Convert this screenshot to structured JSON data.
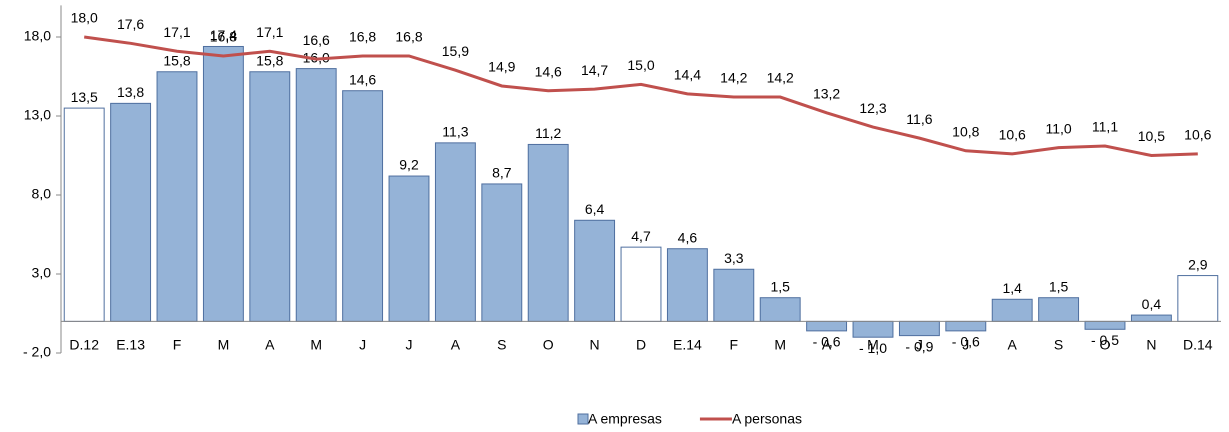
{
  "chart_data": {
    "type": "bar-line",
    "categories": [
      "D.12",
      "E.13",
      "F",
      "M",
      "A",
      "M",
      "J",
      "J",
      "A",
      "S",
      "O",
      "N",
      "D",
      "E.14",
      "F",
      "M",
      "A",
      "M",
      "J",
      "J",
      "A",
      "S",
      "O",
      "N",
      "D.14"
    ],
    "series": [
      {
        "name": "A empresas",
        "type": "bar",
        "color": "#95b3d7",
        "point_colors": [
          "#ffffff",
          "#95b3d7",
          "#95b3d7",
          "#95b3d7",
          "#95b3d7",
          "#95b3d7",
          "#95b3d7",
          "#95b3d7",
          "#95b3d7",
          "#95b3d7",
          "#95b3d7",
          "#95b3d7",
          "#ffffff",
          "#95b3d7",
          "#95b3d7",
          "#95b3d7",
          "#95b3d7",
          "#95b3d7",
          "#95b3d7",
          "#95b3d7",
          "#95b3d7",
          "#95b3d7",
          "#95b3d7",
          "#95b3d7",
          "#ffffff"
        ],
        "values": [
          13.5,
          13.8,
          15.8,
          17.4,
          15.8,
          16.0,
          14.6,
          9.2,
          11.3,
          8.7,
          11.2,
          6.4,
          4.7,
          4.6,
          3.3,
          1.5,
          -0.6,
          -1.0,
          -0.9,
          -0.6,
          1.4,
          1.5,
          -0.5,
          0.4,
          2.9
        ],
        "value_labels": [
          "13,5",
          "13,8",
          "15,8",
          "17,4",
          "15,8",
          "16,0",
          "14,6",
          "9,2",
          "11,3",
          "8,7",
          "11,2",
          "6,4",
          "4,7",
          "4,6",
          "3,3",
          "1,5",
          "- 0,6",
          "- 1,0",
          "- 0,9",
          "- 0,6",
          "1,4",
          "1,5",
          "- 0,5",
          "0,4",
          "2,9"
        ]
      },
      {
        "name": "A personas",
        "type": "line",
        "color": "#c0504d",
        "values": [
          18.0,
          17.6,
          17.1,
          16.8,
          17.1,
          16.6,
          16.8,
          16.8,
          15.9,
          14.9,
          14.6,
          14.7,
          15.0,
          14.4,
          14.2,
          14.2,
          13.2,
          12.3,
          11.6,
          10.8,
          10.6,
          11.0,
          11.1,
          10.5,
          10.6
        ],
        "value_labels": [
          "18,0",
          "17,6",
          "17,1",
          "16,8",
          "17,1",
          "16,6",
          "16,8",
          "16,8",
          "15,9",
          "14,9",
          "14,6",
          "14,7",
          "15,0",
          "14,4",
          "14,2",
          "14,2",
          "13,2",
          "12,3",
          "11,6",
          "10,8",
          "10,6",
          "11,0",
          "11,1",
          "10,5",
          "10,6"
        ]
      }
    ],
    "ylim": [
      -2,
      20
    ],
    "yticks": [
      {
        "value": -2,
        "label": "- 2,0"
      },
      {
        "value": 3,
        "label": "3,0"
      },
      {
        "value": 8,
        "label": "8,0"
      },
      {
        "value": 13,
        "label": "13,0"
      },
      {
        "value": 18,
        "label": "18,0"
      }
    ],
    "legend": "bottom"
  }
}
